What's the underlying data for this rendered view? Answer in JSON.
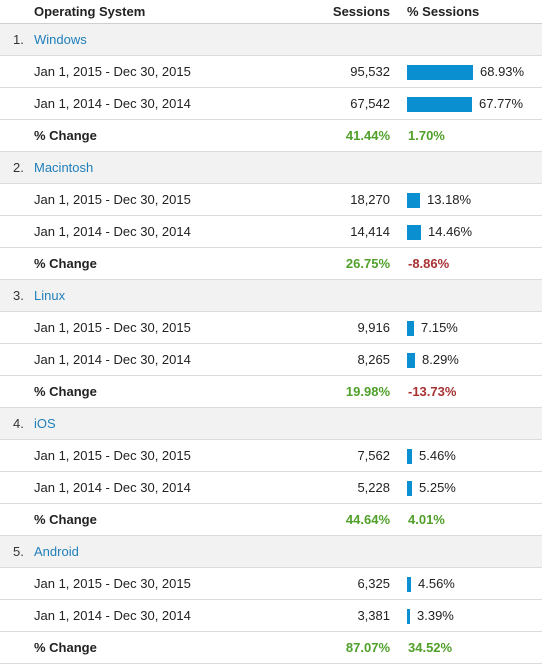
{
  "header": {
    "os_label": "Operating System",
    "sessions_label": "Sessions",
    "pct_sessions_label": "% Sessions"
  },
  "groups": [
    {
      "index": "1.",
      "name": "Windows",
      "rows": [
        {
          "range": "Jan 1, 2015 - Dec 30, 2015",
          "sessions": "95,532",
          "pct": "68.93%",
          "pct_value": 68.93
        },
        {
          "range": "Jan 1, 2014 - Dec 30, 2014",
          "sessions": "67,542",
          "pct": "67.77%",
          "pct_value": 67.77
        }
      ],
      "change": {
        "label": "% Change",
        "sessions": "41.44%",
        "pct": "1.70%",
        "pct_sign": "pos"
      }
    },
    {
      "index": "2.",
      "name": "Macintosh",
      "rows": [
        {
          "range": "Jan 1, 2015 - Dec 30, 2015",
          "sessions": "18,270",
          "pct": "13.18%",
          "pct_value": 13.18
        },
        {
          "range": "Jan 1, 2014 - Dec 30, 2014",
          "sessions": "14,414",
          "pct": "14.46%",
          "pct_value": 14.46
        }
      ],
      "change": {
        "label": "% Change",
        "sessions": "26.75%",
        "pct": "-8.86%",
        "pct_sign": "neg"
      }
    },
    {
      "index": "3.",
      "name": "Linux",
      "rows": [
        {
          "range": "Jan 1, 2015 - Dec 30, 2015",
          "sessions": "9,916",
          "pct": "7.15%",
          "pct_value": 7.15
        },
        {
          "range": "Jan 1, 2014 - Dec 30, 2014",
          "sessions": "8,265",
          "pct": "8.29%",
          "pct_value": 8.29
        }
      ],
      "change": {
        "label": "% Change",
        "sessions": "19.98%",
        "pct": "-13.73%",
        "pct_sign": "neg"
      }
    },
    {
      "index": "4.",
      "name": "iOS",
      "rows": [
        {
          "range": "Jan 1, 2015 - Dec 30, 2015",
          "sessions": "7,562",
          "pct": "5.46%",
          "pct_value": 5.46
        },
        {
          "range": "Jan 1, 2014 - Dec 30, 2014",
          "sessions": "5,228",
          "pct": "5.25%",
          "pct_value": 5.25
        }
      ],
      "change": {
        "label": "% Change",
        "sessions": "44.64%",
        "pct": "4.01%",
        "pct_sign": "pos"
      }
    },
    {
      "index": "5.",
      "name": "Android",
      "rows": [
        {
          "range": "Jan 1, 2015 - Dec 30, 2015",
          "sessions": "6,325",
          "pct": "4.56%",
          "pct_value": 4.56
        },
        {
          "range": "Jan 1, 2014 - Dec 30, 2014",
          "sessions": "3,381",
          "pct": "3.39%",
          "pct_value": 3.39
        }
      ],
      "change": {
        "label": "% Change",
        "sessions": "87.07%",
        "pct": "34.52%",
        "pct_sign": "pos"
      }
    }
  ],
  "colors": {
    "bar": "#0a8fd0",
    "link": "#1f7fba",
    "positive": "#50a02a",
    "negative": "#a83232"
  }
}
